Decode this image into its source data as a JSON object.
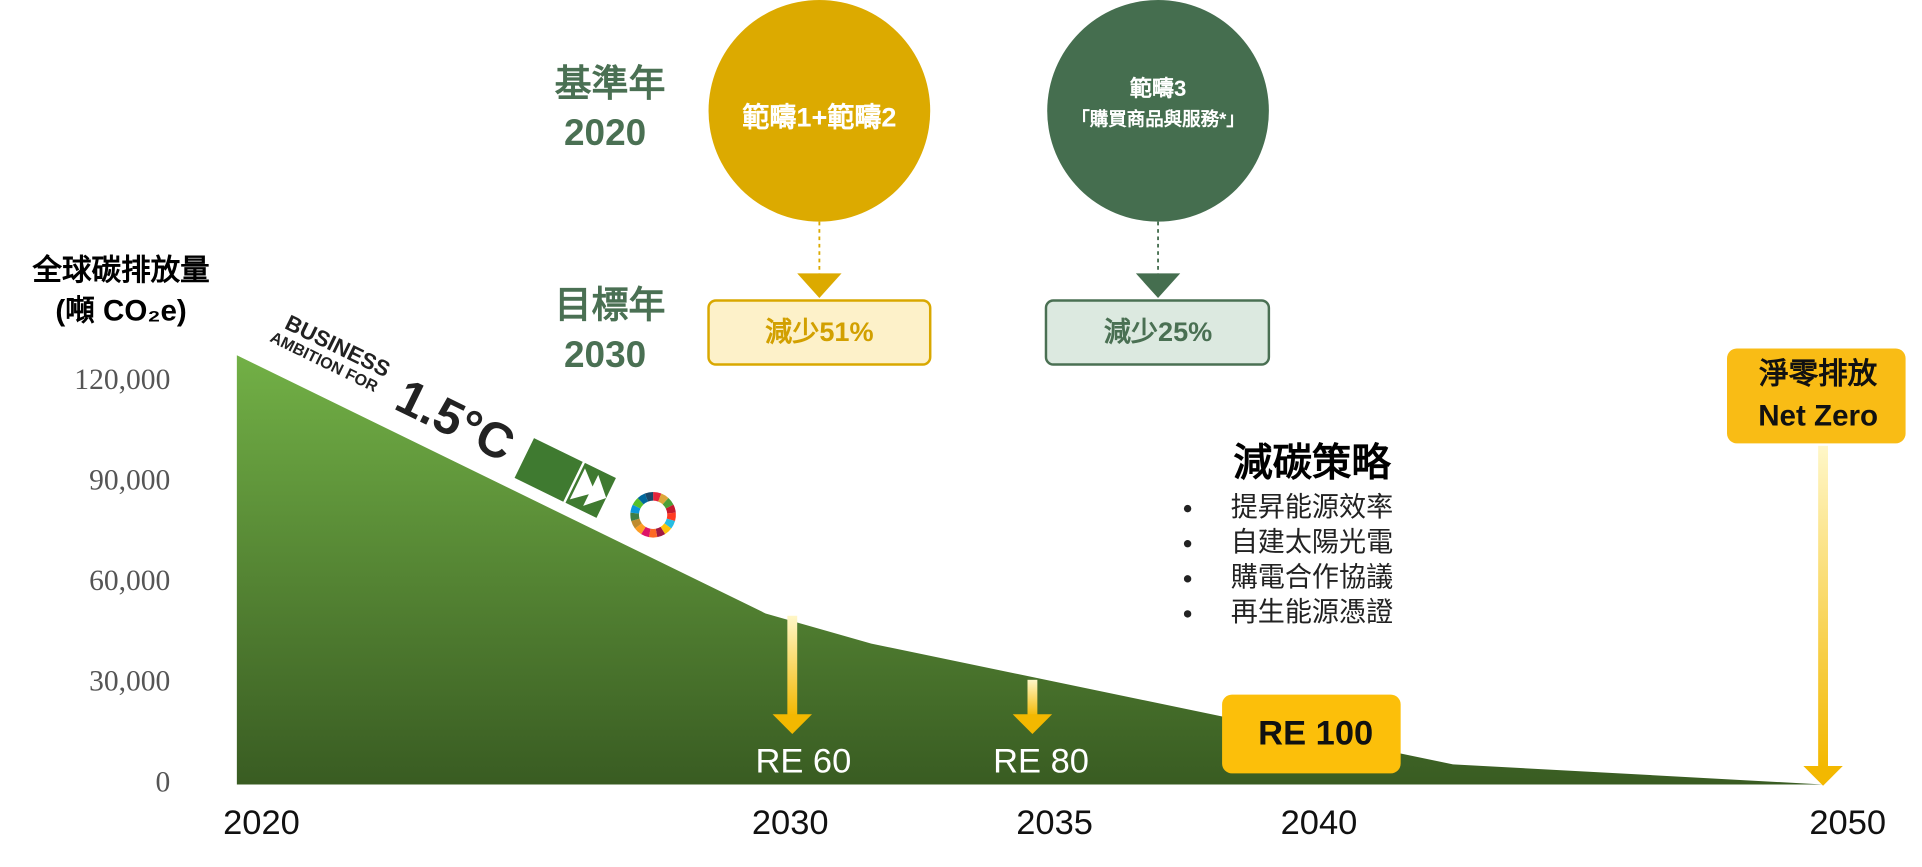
{
  "chart_data": {
    "type": "area",
    "y_label": [
      "全球碳排放量",
      "(噸 CO₂e)"
    ],
    "x": [
      2020,
      2030,
      2032,
      2043,
      2050
    ],
    "values": [
      128000,
      51000,
      42000,
      6000,
      0
    ],
    "color": [
      "#72b046",
      "#395c22"
    ],
    "xlim": [
      2020,
      2050
    ],
    "xticks": [
      2020,
      2030,
      2035,
      2040,
      2050
    ],
    "ylim": [
      0,
      130000
    ],
    "yticks": [
      {
        "value": 0,
        "label": "0"
      },
      {
        "value": 30000,
        "label": "30,000"
      },
      {
        "value": 60000,
        "label": "60,000"
      },
      {
        "value": 90000,
        "label": "90,000"
      },
      {
        "value": 120000,
        "label": "120,000"
      }
    ],
    "grid": false,
    "annotations": {
      "base_year": [
        "基準年",
        "2020"
      ],
      "target_year": [
        "目標年",
        "2030"
      ],
      "scope12": "範疇1+範疇2",
      "scope3": [
        "範疇3",
        "「購買商品與服務*」"
      ],
      "scope12_target": "減少51%",
      "scope3_target": "減少25%",
      "net_zero": [
        "淨零排放",
        "Net Zero"
      ],
      "strategy_title": "減碳策略",
      "strategies": [
        "提昇能源效率",
        "自建太陽光電",
        "購電合作協議",
        "再生能源憑證"
      ],
      "re": [
        "RE 60",
        "RE 80",
        "RE 100"
      ],
      "logo": [
        "BUSINESS",
        "AMBITION FOR",
        "1.5°C"
      ]
    }
  }
}
